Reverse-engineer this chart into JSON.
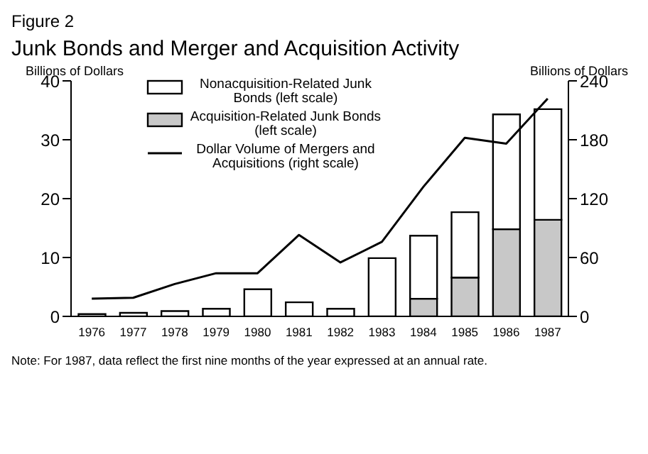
{
  "chart_data": {
    "type": "bar",
    "title": "Figure 2",
    "subtitle": "Junk Bonds and Merger and Acquisition Activity",
    "ylabel": "Billions of Dollars",
    "y2label": "Billions of Dollars",
    "categories": [
      "1976",
      "1977",
      "1978",
      "1979",
      "1980",
      "1981",
      "1982",
      "1983",
      "1984",
      "1985",
      "1986",
      "1987"
    ],
    "stacked": true,
    "series": [
      {
        "name": "Acquisition-Related Junk Bonds (left scale)",
        "color": "#c8c8c8",
        "values": [
          null,
          null,
          null,
          null,
          null,
          null,
          null,
          null,
          3.0,
          6.6,
          14.8,
          16.4
        ]
      },
      {
        "name": "Nonacquisition-Related Junk Bonds (left scale)",
        "color": "#ffffff",
        "values": [
          0.4,
          0.6,
          0.9,
          1.3,
          4.6,
          2.4,
          1.3,
          9.9,
          10.7,
          11.1,
          19.5,
          18.8
        ]
      },
      {
        "name": "Dollar Volume of Mergers and Acquisitions (right scale)",
        "type": "line",
        "axis": "y2",
        "color": "#000000",
        "values": [
          18,
          19,
          33,
          44,
          44,
          83,
          55,
          76,
          132,
          182,
          176,
          222
        ]
      }
    ],
    "ylim": [
      0,
      40
    ],
    "yticks": [
      0,
      10,
      20,
      30,
      40
    ],
    "y2lim": [
      0,
      240
    ],
    "y2ticks": [
      0,
      60,
      120,
      180,
      240
    ],
    "grid": false,
    "legend": "top left",
    "marker": "none",
    "annotations": [
      "Note: For 1987, data reflect the first nine months of the year expressed at an annual rate."
    ]
  }
}
